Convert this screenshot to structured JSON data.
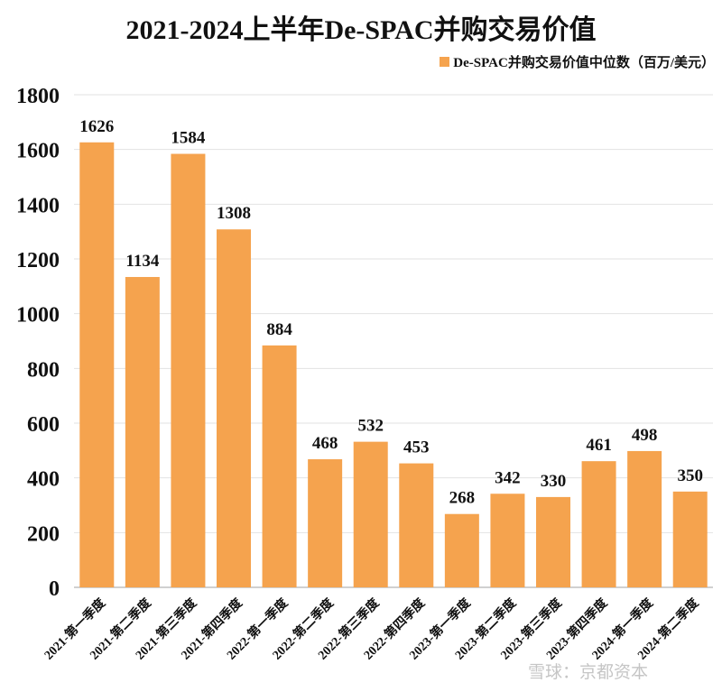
{
  "chart_data": {
    "type": "bar",
    "title": "2021-2024上半年De-SPAC并购交易价值",
    "legend": "De-SPAC并购交易价值中位数（百万/美元）",
    "legend_position": "top-right",
    "categories": [
      "2021-第一季度",
      "2021-第二季度",
      "2021-第三季度",
      "2021-第四季度",
      "2022-第一季度",
      "2022-第二季度",
      "2022-第三季度",
      "2022-第四季度",
      "2023-第一季度",
      "2023-第二季度",
      "2023-第三季度",
      "2023-第四季度",
      "2024-第一季度",
      "2024-第二季度"
    ],
    "values": [
      1626,
      1134,
      1584,
      1308,
      884,
      468,
      532,
      453,
      268,
      342,
      330,
      461,
      498,
      350
    ],
    "yticks": [
      0,
      200,
      400,
      600,
      800,
      1000,
      1200,
      1400,
      1600,
      1800
    ],
    "ylim": [
      0,
      1800
    ],
    "xlabel": "",
    "ylabel": "",
    "grid": true,
    "bar_color": "#F5A34E"
  },
  "watermark": "雪球：京都资本"
}
